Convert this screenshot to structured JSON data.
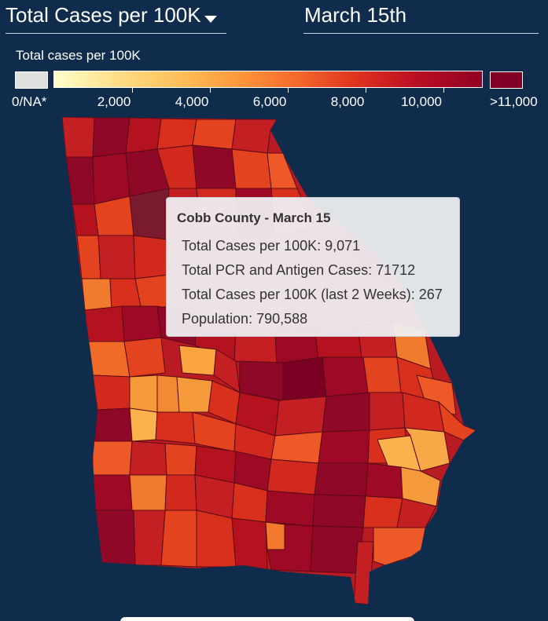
{
  "header": {
    "metric_label": "Total Cases per 100K",
    "date_label": "March 15th"
  },
  "legend": {
    "title": "Total cases per 100K",
    "na_label": "0/NA*",
    "ticks": [
      "2,000",
      "4,000",
      "6,000",
      "8,000",
      "10,000"
    ],
    "max_label": ">11,000",
    "color_low": "#ffffcc",
    "color_high": "#7f0024",
    "na_color": "#e0e0e0"
  },
  "tooltip": {
    "title": "Cobb County - March 15",
    "rows": [
      "Total Cases per 100K: 9,071",
      "Total PCR and Antigen Cases: 71712",
      "Total Cases per 100K (last 2 Weeks): 267",
      "Population: 790,588"
    ]
  },
  "map": {
    "region": "Georgia",
    "highlighted_county": "Cobb County",
    "background_color": "#0f2c4c"
  }
}
